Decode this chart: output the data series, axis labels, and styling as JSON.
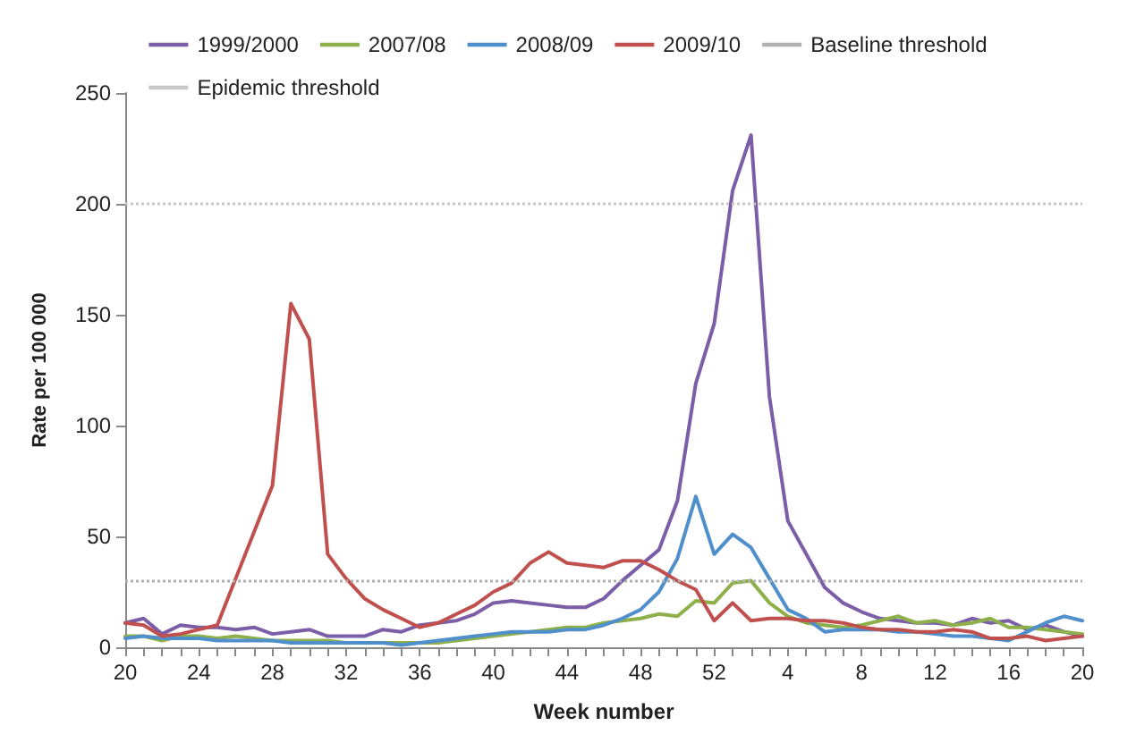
{
  "chart_data": {
    "type": "line",
    "xlabel": "Week number",
    "ylabel": "Rate per 100 000",
    "categories": [
      "20",
      null,
      null,
      null,
      "24",
      null,
      null,
      null,
      "28",
      null,
      null,
      null,
      "32",
      null,
      null,
      null,
      "36",
      null,
      null,
      null,
      "40",
      null,
      null,
      null,
      "44",
      null,
      null,
      null,
      "48",
      null,
      null,
      null,
      "52",
      null,
      null,
      null,
      "4",
      null,
      null,
      null,
      "8",
      null,
      null,
      null,
      "12",
      null,
      null,
      null,
      "16",
      null,
      null,
      null,
      "20"
    ],
    "series": [
      {
        "name": "1999/2000",
        "color": "#7b5ea7",
        "values": [
          11,
          13,
          6,
          10,
          9,
          9,
          8,
          9,
          6,
          7,
          8,
          5,
          5,
          5,
          8,
          7,
          10,
          11,
          12,
          15,
          20,
          21,
          20,
          19,
          18,
          18,
          22,
          30,
          37,
          44,
          66,
          119,
          146,
          206,
          231,
          113,
          57,
          42,
          27,
          20,
          16,
          13,
          12,
          11,
          11,
          10,
          13,
          11,
          12,
          8,
          10,
          7,
          5
        ]
      },
      {
        "name": "2007/08",
        "color": "#8db04a",
        "values": [
          5,
          5,
          3,
          5,
          5,
          4,
          5,
          4,
          3,
          3,
          3,
          3,
          2,
          2,
          2,
          2,
          2,
          2,
          3,
          4,
          5,
          6,
          7,
          8,
          9,
          9,
          11,
          12,
          13,
          15,
          14,
          21,
          20,
          29,
          30,
          20,
          14,
          11,
          10,
          9,
          10,
          12,
          14,
          11,
          12,
          10,
          11,
          13,
          9,
          9,
          8,
          7,
          6
        ]
      },
      {
        "name": "2008/09",
        "color": "#4f8fcc",
        "values": [
          4,
          5,
          4,
          4,
          4,
          3,
          3,
          3,
          3,
          2,
          2,
          2,
          2,
          2,
          2,
          1,
          2,
          3,
          4,
          5,
          6,
          7,
          7,
          7,
          8,
          8,
          10,
          13,
          17,
          25,
          40,
          68,
          42,
          51,
          45,
          31,
          17,
          13,
          7,
          8,
          8,
          8,
          7,
          7,
          6,
          5,
          5,
          4,
          3,
          7,
          11,
          14,
          12
        ]
      },
      {
        "name": "2009/10",
        "color": "#c0504d",
        "values": [
          11,
          10,
          5,
          6,
          8,
          10,
          31,
          52,
          73,
          155,
          139,
          42,
          31,
          22,
          17,
          13,
          9,
          11,
          15,
          19,
          25,
          29,
          38,
          43,
          38,
          37,
          36,
          39,
          39,
          35,
          30,
          26,
          12,
          20,
          12,
          13,
          13,
          12,
          12,
          11,
          9,
          8,
          8,
          7,
          7,
          8,
          7,
          4,
          4,
          5,
          3,
          4,
          5
        ]
      }
    ],
    "ref_lines": [
      {
        "axis": "y",
        "value": 30,
        "label": "Baseline threshold",
        "color": "#b0b0b0",
        "line_style": "dotted"
      },
      {
        "axis": "y",
        "value": 200,
        "label": "Epidemic threshold",
        "color": "#c8c8c8",
        "line_style": "dotted"
      }
    ],
    "ylim": [
      0,
      250
    ],
    "yticks": [
      0,
      50,
      100,
      150,
      200,
      250
    ],
    "grid": false,
    "legend": "top",
    "marker": "none",
    "line_style": "solid"
  }
}
